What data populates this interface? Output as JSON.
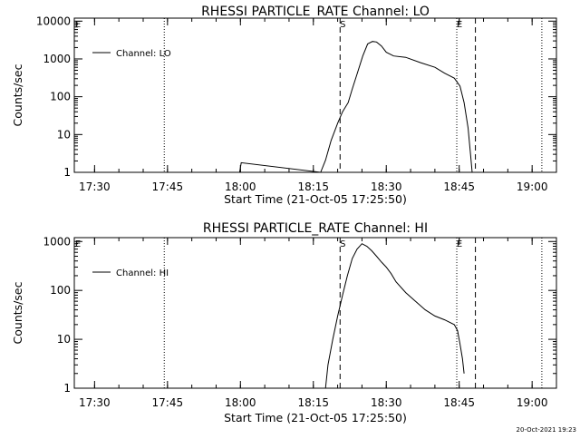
{
  "chart_data": [
    {
      "type": "line",
      "title": "RHESSI PARTICLE_RATE Channel: LO",
      "xlabel": "Start Time (21-Oct-05 17:25:50)",
      "ylabel": "Counts/sec",
      "yscale": "log",
      "ylim": [
        1,
        12000
      ],
      "xlim": [
        "17:25:50",
        "19:05:00"
      ],
      "xticks": [
        "17:30",
        "17:45",
        "18:00",
        "18:15",
        "18:30",
        "18:45",
        "19:00"
      ],
      "yticks": [
        "1",
        "10",
        "100",
        "1000",
        "10000"
      ],
      "legend": {
        "position": "top-left",
        "entries": [
          "Channel: LO"
        ]
      },
      "start_marker": {
        "label": "S",
        "time": "18:20:30"
      },
      "end_marker": {
        "label": "E",
        "time": "18:44:30"
      },
      "dashed_lines": [
        "18:20:30",
        "18:48:20"
      ],
      "dotted_lines": [
        "17:44:20",
        "18:44:30",
        "19:02:00"
      ],
      "series": [
        {
          "name": "Channel: LO",
          "x": [
            "17:59:50",
            "18:00:10",
            "18:16:30",
            "18:17:30",
            "18:18:40",
            "18:20:00",
            "18:21:00",
            "18:22:10",
            "18:23:00",
            "18:24:00",
            "18:25:10",
            "18:26:10",
            "18:27:10",
            "18:28:00",
            "18:29:00",
            "18:30:00",
            "18:31:30",
            "18:34:00",
            "18:37:00",
            "18:40:00",
            "18:42:00",
            "18:44:00",
            "18:45:10",
            "18:46:00",
            "18:46:50",
            "18:47:20",
            "18:47:40"
          ],
          "y": [
            1,
            1.8,
            1,
            2.1,
            7,
            20,
            40,
            70,
            160,
            400,
            1200,
            2500,
            2900,
            2800,
            2200,
            1500,
            1200,
            1100,
            800,
            600,
            420,
            310,
            190,
            70,
            15,
            3,
            1
          ]
        }
      ]
    },
    {
      "type": "line",
      "title": "RHESSI PARTICLE_RATE Channel: HI",
      "xlabel": "Start Time (21-Oct-05 17:25:50)",
      "ylabel": "Counts/sec",
      "yscale": "log",
      "ylim": [
        1,
        1200
      ],
      "xlim": [
        "17:25:50",
        "19:05:00"
      ],
      "xticks": [
        "17:30",
        "17:45",
        "18:00",
        "18:15",
        "18:30",
        "18:45",
        "19:00"
      ],
      "yticks": [
        "1",
        "10",
        "100",
        "1000"
      ],
      "legend": {
        "position": "top-left",
        "entries": [
          "Channel: HI"
        ]
      },
      "start_marker": {
        "label": "S",
        "time": "18:20:30"
      },
      "end_marker": {
        "label": "E",
        "time": "18:44:30"
      },
      "dashed_lines": [
        "18:20:30",
        "18:48:20"
      ],
      "dotted_lines": [
        "17:44:20",
        "18:44:30",
        "19:02:00"
      ],
      "series": [
        {
          "name": "Channel: HI",
          "x": [
            "18:17:30",
            "18:18:00",
            "18:19:00",
            "18:20:00",
            "18:21:00",
            "18:22:00",
            "18:23:00",
            "18:24:00",
            "18:25:00",
            "18:26:00",
            "18:27:00",
            "18:28:00",
            "18:29:00",
            "18:30:00",
            "18:31:00",
            "18:32:00",
            "18:34:00",
            "18:36:00",
            "18:38:00",
            "18:40:00",
            "18:42:00",
            "18:44:00",
            "18:44:40",
            "18:45:10",
            "18:45:40",
            "18:46:00"
          ],
          "y": [
            1,
            3,
            10,
            30,
            80,
            200,
            450,
            700,
            900,
            800,
            650,
            500,
            380,
            300,
            220,
            150,
            90,
            60,
            40,
            30,
            25,
            20,
            15,
            8,
            4,
            2
          ]
        }
      ]
    }
  ],
  "footer": {
    "timestamp": "20-Oct-2021 19:23"
  }
}
